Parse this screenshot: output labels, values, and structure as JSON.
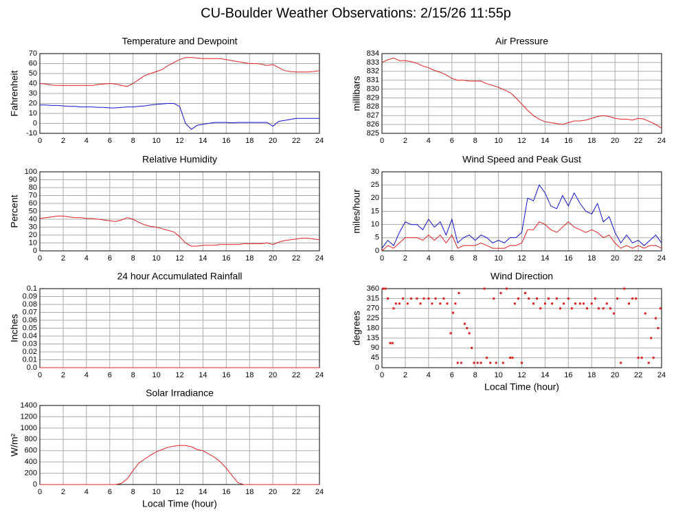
{
  "title": "CU-Boulder Weather Observations: 2/15/26 11:55p",
  "chart_data": [
    {
      "type": "line",
      "title": "Temperature and Dewpoint",
      "ylabel": "Fahrenheit",
      "x": [
        0,
        0.5,
        1,
        1.5,
        2,
        2.5,
        3,
        3.5,
        4,
        4.5,
        5,
        5.5,
        6,
        6.5,
        7,
        7.5,
        8,
        8.5,
        9,
        9.5,
        10,
        10.5,
        11,
        11.5,
        12,
        12.5,
        13,
        13.5,
        14,
        14.5,
        15,
        15.5,
        16,
        16.5,
        17,
        17.5,
        18,
        18.5,
        19,
        19.5,
        20,
        20.5,
        21,
        21.5,
        22,
        22.5,
        23,
        23.5,
        24
      ],
      "series": [
        {
          "color": "#e02020",
          "values": [
            40,
            39.5,
            38.5,
            38,
            38,
            38,
            38,
            38,
            38,
            38,
            39,
            39.5,
            40,
            39.5,
            38,
            37,
            40,
            44,
            48,
            50,
            52,
            54,
            58,
            61,
            64,
            66,
            66,
            65.5,
            65,
            65,
            65,
            65,
            64,
            63,
            62,
            61,
            60,
            60,
            59.5,
            58,
            59,
            56,
            53,
            52,
            51.5,
            51.5,
            51.5,
            52,
            53
          ]
        },
        {
          "color": "#1010d0",
          "values": [
            18.5,
            18.5,
            18,
            18,
            17.5,
            17,
            17,
            16.5,
            16.5,
            16.5,
            16,
            16,
            15.5,
            15.5,
            16,
            16.5,
            16.5,
            17,
            17.5,
            18.5,
            19,
            19.5,
            20,
            20,
            17,
            0,
            -6,
            -2,
            -1,
            0,
            1,
            1,
            1,
            0.5,
            1,
            1,
            1,
            1,
            1,
            1,
            -3,
            2,
            3,
            4,
            5,
            5,
            5,
            5,
            5
          ]
        }
      ],
      "xlim": [
        0,
        24
      ],
      "xticks": [
        0,
        2,
        4,
        6,
        8,
        10,
        12,
        14,
        16,
        18,
        20,
        22,
        24
      ],
      "ylim": [
        -10,
        70
      ],
      "yticks": [
        -10,
        0,
        10,
        20,
        30,
        40,
        50,
        60,
        70
      ],
      "grid": true
    },
    {
      "type": "line",
      "title": "Air Pressure",
      "ylabel": "millibars",
      "x": [
        0,
        0.5,
        1,
        1.5,
        2,
        2.5,
        3,
        3.5,
        4,
        4.5,
        5,
        5.5,
        6,
        6.5,
        7,
        7.5,
        8,
        8.5,
        9,
        9.5,
        10,
        10.5,
        11,
        11.5,
        12,
        12.5,
        13,
        13.5,
        14,
        14.5,
        15,
        15.5,
        16,
        16.5,
        17,
        17.5,
        18,
        18.5,
        19,
        19.5,
        20,
        20.5,
        21,
        21.5,
        22,
        22.5,
        23,
        23.5,
        24
      ],
      "series": [
        {
          "color": "#e02020",
          "values": [
            833,
            833.3,
            833.5,
            833.2,
            833.2,
            833.1,
            832.9,
            832.6,
            832.4,
            832.1,
            831.9,
            831.6,
            831.2,
            831,
            831,
            830.9,
            830.9,
            830.9,
            830.6,
            830.4,
            830.2,
            829.9,
            829.6,
            829,
            828.3,
            827.6,
            827,
            826.6,
            826.3,
            826.2,
            826.1,
            826,
            826.2,
            826.4,
            826.4,
            826.5,
            826.7,
            826.9,
            827,
            826.9,
            826.7,
            826.6,
            826.6,
            826.5,
            826.7,
            826.6,
            826.3,
            826,
            825.6
          ]
        }
      ],
      "xlim": [
        0,
        24
      ],
      "xticks": [
        0,
        2,
        4,
        6,
        8,
        10,
        12,
        14,
        16,
        18,
        20,
        22,
        24
      ],
      "ylim": [
        825,
        834
      ],
      "yticks": [
        825,
        826,
        827,
        828,
        829,
        830,
        831,
        832,
        833,
        834
      ],
      "grid": true
    },
    {
      "type": "line",
      "title": "Relative Humidity",
      "ylabel": "Percent",
      "x": [
        0,
        0.5,
        1,
        1.5,
        2,
        2.5,
        3,
        3.5,
        4,
        4.5,
        5,
        5.5,
        6,
        6.5,
        7,
        7.5,
        8,
        8.5,
        9,
        9.5,
        10,
        10.5,
        11,
        11.5,
        12,
        12.5,
        13,
        13.5,
        14,
        14.5,
        15,
        15.5,
        16,
        16.5,
        17,
        17.5,
        18,
        18.5,
        19,
        19.5,
        20,
        20.5,
        21,
        21.5,
        22,
        22.5,
        23,
        23.5,
        24
      ],
      "series": [
        {
          "color": "#e02020",
          "values": [
            41,
            42,
            43,
            44,
            44,
            43,
            42,
            42,
            41,
            41,
            40,
            39,
            38,
            37,
            39,
            42,
            40,
            36,
            33,
            31,
            30,
            28,
            26,
            24,
            18,
            10,
            6,
            6,
            7,
            7,
            7,
            8,
            8,
            8,
            8,
            9,
            9,
            9,
            9,
            10,
            8,
            11,
            13,
            14,
            15,
            16,
            16,
            15,
            14
          ]
        }
      ],
      "xlim": [
        0,
        24
      ],
      "xticks": [
        0,
        2,
        4,
        6,
        8,
        10,
        12,
        14,
        16,
        18,
        20,
        22,
        24
      ],
      "ylim": [
        0,
        100
      ],
      "yticks": [
        0,
        10,
        20,
        30,
        40,
        50,
        60,
        70,
        80,
        90,
        100
      ],
      "grid": true
    },
    {
      "type": "line",
      "title": "Wind Speed and Peak Gust",
      "ylabel": "miles/hour",
      "x": [
        0,
        0.5,
        1,
        1.5,
        2,
        2.5,
        3,
        3.5,
        4,
        4.5,
        5,
        5.5,
        6,
        6.5,
        7,
        7.5,
        8,
        8.5,
        9,
        9.5,
        10,
        10.5,
        11,
        11.5,
        12,
        12.5,
        13,
        13.5,
        14,
        14.5,
        15,
        15.5,
        16,
        16.5,
        17,
        17.5,
        18,
        18.5,
        19,
        19.5,
        20,
        20.5,
        21,
        21.5,
        22,
        22.5,
        23,
        23.5,
        24
      ],
      "series": [
        {
          "color": "#1010d0",
          "values": [
            1,
            4,
            2,
            7,
            11,
            10,
            10,
            8,
            12,
            9,
            11,
            6,
            12,
            3,
            5,
            6,
            4,
            6,
            5,
            3,
            4,
            3,
            5,
            5,
            7,
            20,
            19,
            25,
            22,
            17,
            16,
            21,
            17,
            22,
            18,
            15,
            14,
            18,
            11,
            13,
            7,
            3,
            6,
            3,
            4,
            2,
            4,
            6,
            3
          ]
        },
        {
          "color": "#e02020",
          "values": [
            0,
            2,
            1,
            3,
            5,
            5,
            5,
            4,
            6,
            4,
            6,
            3,
            6,
            1,
            2,
            2,
            2,
            3,
            2,
            1,
            1,
            1,
            2,
            2,
            3,
            8,
            8,
            11,
            10,
            8,
            7,
            9,
            11,
            9,
            8,
            7,
            8,
            7,
            5,
            6,
            3,
            1,
            2,
            1,
            2,
            1,
            2,
            2,
            1
          ]
        }
      ],
      "xlim": [
        0,
        24
      ],
      "xticks": [
        0,
        2,
        4,
        6,
        8,
        10,
        12,
        14,
        16,
        18,
        20,
        22,
        24
      ],
      "ylim": [
        0,
        30
      ],
      "yticks": [
        0,
        5,
        10,
        15,
        20,
        25,
        30
      ],
      "grid": true
    },
    {
      "type": "line",
      "title": "24 hour Accumulated Rainfall",
      "ylabel": "Inches",
      "x": [
        0,
        24
      ],
      "series": [
        {
          "color": "#e02020",
          "values": [
            0,
            0
          ]
        }
      ],
      "xlim": [
        0,
        24
      ],
      "xticks": [
        0,
        2,
        4,
        6,
        8,
        10,
        12,
        14,
        16,
        18,
        20,
        22,
        24
      ],
      "ylim": [
        0,
        0.1
      ],
      "yticks": [
        {
          "value": 0,
          "label": "0.0"
        },
        0.01,
        0.02,
        0.03,
        0.04,
        0.05,
        0.06,
        0.07,
        0.08,
        0.09,
        0.1
      ],
      "grid": true
    },
    {
      "type": "scatter",
      "title": "Wind Direction",
      "ylabel": "degrees",
      "xlabel": "Local Time (hour)",
      "color": "#e02020",
      "x": [
        0.1,
        0.3,
        0.5,
        0.7,
        0.9,
        1,
        1.2,
        1.5,
        1.8,
        2.2,
        2.5,
        3,
        3.3,
        3.6,
        4,
        4.3,
        4.6,
        5,
        5.3,
        5.6,
        5.9,
        6.1,
        6.3,
        6.5,
        6.6,
        6.8,
        7.1,
        7.3,
        7.5,
        7.7,
        7.9,
        8.2,
        8.5,
        8.8,
        9,
        9.3,
        9.6,
        9.8,
        10.2,
        10.4,
        10.7,
        11,
        11.2,
        11.4,
        11.7,
        12,
        12.3,
        12.6,
        13,
        13.3,
        13.6,
        14,
        14.3,
        14.6,
        15,
        15.3,
        15.6,
        16,
        16.3,
        16.6,
        17,
        17.3,
        17.6,
        18,
        18.3,
        18.6,
        19,
        19.3,
        19.6,
        19.9,
        20.2,
        20.5,
        20.8,
        21.2,
        21.5,
        21.8,
        22,
        22.3,
        22.6,
        22.9,
        23.1,
        23.3,
        23.5,
        23.7,
        23.9
      ],
      "values": [
        360,
        360,
        315,
        112,
        112,
        270,
        292,
        292,
        315,
        292,
        315,
        315,
        292,
        315,
        315,
        292,
        315,
        292,
        315,
        292,
        157,
        250,
        292,
        22,
        340,
        22,
        200,
        180,
        157,
        90,
        22,
        22,
        22,
        360,
        45,
        22,
        315,
        22,
        340,
        22,
        360,
        45,
        45,
        292,
        315,
        22,
        340,
        315,
        292,
        315,
        270,
        292,
        315,
        292,
        315,
        270,
        292,
        315,
        270,
        292,
        292,
        292,
        270,
        292,
        315,
        270,
        270,
        292,
        270,
        247,
        315,
        22,
        360,
        292,
        315,
        315,
        45,
        45,
        247,
        22,
        135,
        45,
        225,
        180,
        270
      ],
      "xlim": [
        0,
        24
      ],
      "xticks": [
        0,
        2,
        4,
        6,
        8,
        10,
        12,
        14,
        16,
        18,
        20,
        22,
        24
      ],
      "ylim": [
        0,
        360
      ],
      "yticks": [
        0,
        45,
        90,
        135,
        180,
        225,
        270,
        315,
        360
      ],
      "grid": true
    },
    {
      "type": "line",
      "title": "Solar Irradiance",
      "ylabel": "W/m²",
      "xlabel": "Local Time (hour)",
      "x": [
        0,
        6.5,
        7,
        7.5,
        8,
        8.5,
        9,
        9.5,
        10,
        10.5,
        11,
        11.5,
        12,
        12.5,
        13,
        13.5,
        14,
        14.5,
        15,
        15.5,
        16,
        16.5,
        17,
        17.5,
        24
      ],
      "series": [
        {
          "color": "#e02020",
          "values": [
            0,
            0,
            20,
            100,
            250,
            380,
            450,
            520,
            580,
            620,
            660,
            680,
            690,
            690,
            670,
            620,
            600,
            540,
            480,
            400,
            290,
            160,
            30,
            0,
            0
          ]
        }
      ],
      "xlim": [
        0,
        24
      ],
      "xticks": [
        0,
        2,
        4,
        6,
        8,
        10,
        12,
        14,
        16,
        18,
        20,
        22,
        24
      ],
      "ylim": [
        0,
        1400
      ],
      "yticks": [
        0,
        200,
        400,
        600,
        800,
        1000,
        1200,
        1400
      ],
      "grid": true
    }
  ]
}
